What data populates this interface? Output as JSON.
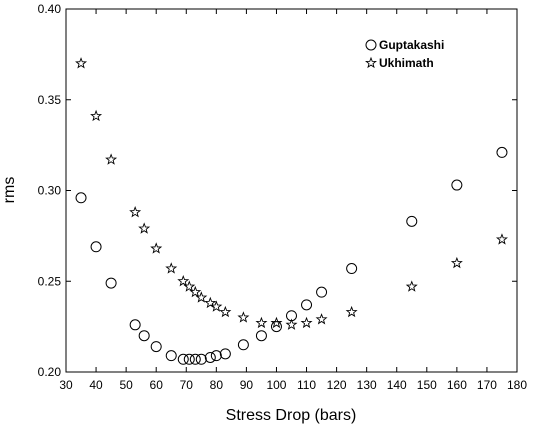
{
  "chart_data": {
    "type": "scatter",
    "title": "",
    "xlabel": "Stress Drop (bars)",
    "ylabel": "rms",
    "xlim": [
      30,
      180
    ],
    "ylim": [
      0.2,
      0.4
    ],
    "xticks": [
      30,
      40,
      50,
      60,
      70,
      80,
      90,
      100,
      110,
      120,
      130,
      140,
      150,
      160,
      170,
      180
    ],
    "yticks": [
      0.2,
      0.25,
      0.3,
      0.35,
      0.4
    ],
    "ytick_labels": [
      "0.20",
      "0.25",
      "0.30",
      "0.35",
      "0.40"
    ],
    "grid": false,
    "legend": "top-right",
    "series": [
      {
        "name": "Guptakashi",
        "marker": "circle",
        "x": [
          35,
          40,
          45,
          53,
          56,
          60,
          65,
          69,
          71,
          73,
          75,
          78,
          80,
          83,
          89,
          95,
          100,
          105,
          110,
          115,
          125,
          145,
          160,
          175
        ],
        "y": [
          0.296,
          0.269,
          0.249,
          0.226,
          0.22,
          0.214,
          0.209,
          0.207,
          0.207,
          0.207,
          0.207,
          0.208,
          0.209,
          0.21,
          0.215,
          0.22,
          0.225,
          0.231,
          0.237,
          0.244,
          0.257,
          0.283,
          0.303,
          0.321
        ]
      },
      {
        "name": "Ukhimath",
        "marker": "star",
        "x": [
          35,
          40,
          45,
          53,
          56,
          60,
          65,
          69,
          71,
          73,
          75,
          78,
          80,
          83,
          89,
          95,
          100,
          105,
          110,
          115,
          125,
          145,
          160,
          175
        ],
        "y": [
          0.37,
          0.341,
          0.317,
          0.288,
          0.279,
          0.268,
          0.257,
          0.25,
          0.247,
          0.244,
          0.241,
          0.238,
          0.236,
          0.233,
          0.23,
          0.227,
          0.227,
          0.226,
          0.227,
          0.229,
          0.233,
          0.247,
          0.26,
          0.273
        ]
      }
    ]
  }
}
